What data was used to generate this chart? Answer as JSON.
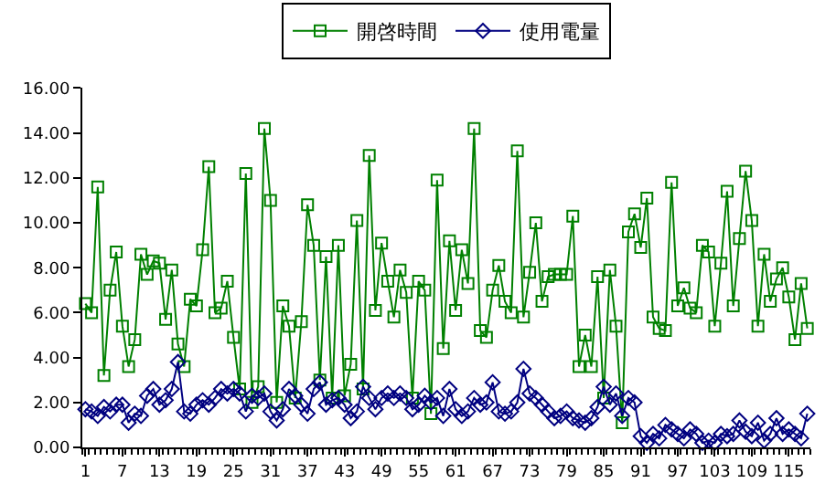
{
  "chart_data": {
    "type": "line",
    "x": [
      1,
      2,
      3,
      4,
      5,
      6,
      7,
      8,
      9,
      10,
      11,
      12,
      13,
      14,
      15,
      16,
      17,
      18,
      19,
      20,
      21,
      22,
      23,
      24,
      25,
      26,
      27,
      28,
      29,
      30,
      31,
      32,
      33,
      34,
      35,
      36,
      37,
      38,
      39,
      40,
      41,
      42,
      43,
      44,
      45,
      46,
      47,
      48,
      49,
      50,
      51,
      52,
      53,
      54,
      55,
      56,
      57,
      58,
      59,
      60,
      61,
      62,
      63,
      64,
      65,
      66,
      67,
      68,
      69,
      70,
      71,
      72,
      73,
      74,
      75,
      76,
      77,
      78,
      79,
      80,
      81,
      82,
      83,
      84,
      85,
      86,
      87,
      88,
      89,
      90,
      91,
      92,
      93,
      94,
      95,
      96,
      97,
      98,
      99,
      100,
      101,
      102,
      103,
      104,
      105,
      106,
      107,
      108,
      109,
      110,
      111,
      112,
      113,
      114,
      115,
      116,
      117,
      118
    ],
    "series": [
      {
        "name": "開啓時間",
        "color": "#008000",
        "marker": "square",
        "values": [
          6.4,
          6.0,
          11.6,
          3.2,
          7.0,
          8.7,
          5.4,
          3.6,
          4.8,
          8.6,
          7.7,
          8.3,
          8.2,
          5.7,
          7.9,
          4.6,
          3.6,
          6.6,
          6.3,
          8.8,
          12.5,
          6.0,
          6.2,
          7.4,
          4.9,
          2.6,
          12.2,
          2.0,
          2.7,
          14.2,
          11.0,
          2.0,
          6.3,
          5.4,
          2.2,
          5.6,
          10.8,
          9.0,
          3.0,
          8.5,
          2.2,
          9.0,
          2.3,
          3.7,
          10.1,
          2.6,
          13.0,
          6.1,
          9.1,
          7.4,
          5.8,
          7.9,
          6.9,
          2.2,
          7.4,
          7.0,
          1.5,
          11.9,
          4.4,
          9.2,
          6.1,
          8.8,
          7.3,
          14.2,
          5.2,
          4.9,
          7.0,
          8.1,
          6.5,
          6.0,
          13.2,
          5.8,
          7.8,
          10.0,
          6.5,
          7.6,
          7.7,
          7.7,
          7.7,
          10.3,
          3.6,
          5.0,
          3.6,
          7.6,
          2.2,
          7.9,
          5.4,
          1.1,
          9.6,
          10.4,
          8.9,
          11.1,
          5.8,
          5.3,
          5.2,
          11.8,
          6.3,
          7.1,
          6.2,
          6.0,
          9.0,
          8.7,
          5.4,
          8.2,
          11.4,
          6.3,
          9.3,
          12.3,
          10.1,
          5.4,
          8.6,
          6.5,
          7.5,
          8.0,
          6.7,
          4.8,
          7.3,
          5.3
        ]
      },
      {
        "name": "使用電量",
        "color": "#000080",
        "marker": "diamond",
        "values": [
          1.7,
          1.6,
          1.4,
          1.8,
          1.6,
          1.9,
          1.9,
          1.1,
          1.5,
          1.4,
          2.3,
          2.6,
          1.9,
          2.1,
          2.6,
          3.8,
          1.6,
          1.5,
          1.9,
          2.1,
          1.9,
          2.2,
          2.6,
          2.4,
          2.6,
          2.4,
          1.6,
          2.3,
          2.2,
          2.4,
          1.6,
          1.2,
          1.7,
          2.6,
          2.3,
          1.9,
          1.5,
          2.6,
          2.9,
          1.9,
          2.1,
          2.2,
          1.9,
          1.3,
          1.6,
          2.7,
          2.2,
          1.7,
          2.2,
          2.4,
          2.2,
          2.4,
          2.2,
          1.7,
          1.9,
          2.3,
          2.0,
          2.2,
          1.4,
          2.6,
          1.7,
          1.4,
          1.6,
          2.2,
          1.9,
          2.0,
          2.9,
          1.6,
          1.5,
          1.6,
          2.0,
          3.5,
          2.4,
          2.2,
          1.9,
          1.6,
          1.3,
          1.4,
          1.6,
          1.3,
          1.2,
          1.1,
          1.3,
          1.8,
          2.7,
          1.9,
          2.4,
          1.4,
          2.2,
          2.0,
          0.5,
          0.2,
          0.6,
          0.4,
          1.0,
          0.8,
          0.6,
          0.4,
          0.8,
          0.6,
          0.2,
          0.3,
          0.2,
          0.6,
          0.5,
          0.6,
          1.2,
          0.7,
          0.5,
          1.1,
          0.3,
          0.6,
          1.3,
          0.6,
          0.8,
          0.6,
          0.4,
          1.5
        ]
      }
    ],
    "xlim": [
      0.5,
      118.5
    ],
    "xticks": [
      1,
      7,
      13,
      19,
      25,
      31,
      37,
      43,
      49,
      55,
      61,
      67,
      73,
      79,
      85,
      91,
      97,
      103,
      109,
      115
    ],
    "ylim": [
      0,
      16
    ],
    "yticks": [
      {
        "value": 0,
        "label": "0.00"
      },
      {
        "value": 2,
        "label": "2.00"
      },
      {
        "value": 4,
        "label": "4.00"
      },
      {
        "value": 6,
        "label": "6.00"
      },
      {
        "value": 8,
        "label": "8.00"
      },
      {
        "value": 10,
        "label": "10.00"
      },
      {
        "value": 12,
        "label": "12.00"
      },
      {
        "value": 14,
        "label": "14.00"
      },
      {
        "value": 16,
        "label": "16.00"
      }
    ],
    "grid": false,
    "legend": "top"
  }
}
